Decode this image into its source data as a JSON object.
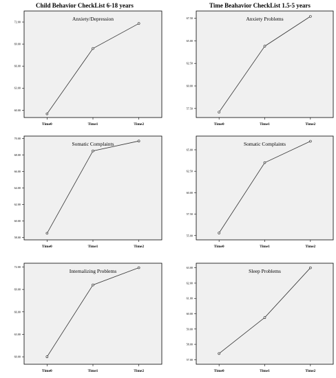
{
  "columns": [
    {
      "title": "Child Behavior CheckList 6-18 years"
    },
    {
      "title": "Time Beahavior CheckList 1.5-5 years"
    }
  ],
  "chart_data": [
    {
      "type": "line",
      "title": "Anxiety/Depression",
      "categories": [
        "Time0",
        "Time1",
        "Time2"
      ],
      "values": [
        59.5,
        68.4,
        71.8
      ],
      "yticks": [
        "60.00",
        "63.00",
        "66.00",
        "69.00",
        "72.00"
      ],
      "ylim": [
        59.0,
        73.5
      ],
      "grid": false
    },
    {
      "type": "line",
      "title": "Anxiety Problems",
      "categories": [
        "Time0",
        "Time1",
        "Time2"
      ],
      "values": [
        57.1,
        64.4,
        67.7
      ],
      "yticks": [
        "57.50",
        "60.00",
        "62.50",
        "65.00",
        "67.50"
      ],
      "ylim": [
        56.5,
        68.3
      ],
      "grid": false
    },
    {
      "type": "line",
      "title": "Somatic Complaints",
      "categories": [
        "Time0",
        "Time1",
        "Time2"
      ],
      "values": [
        58.5,
        68.5,
        69.7
      ],
      "yticks": [
        "58.00",
        "60.00",
        "62.00",
        "64.00",
        "66.00",
        "68.00",
        "70.00"
      ],
      "ylim": [
        57.7,
        70.3
      ],
      "grid": false
    },
    {
      "type": "line",
      "title": "Somatic Complaints",
      "categories": [
        "Time0",
        "Time1",
        "Time2"
      ],
      "values": [
        55.3,
        63.5,
        66.0
      ],
      "yticks": [
        "55.00",
        "57.50",
        "60.00",
        "62.50",
        "65.00"
      ],
      "ylim": [
        54.5,
        66.6
      ],
      "grid": false
    },
    {
      "type": "line",
      "title": "Internalizing Problems",
      "categories": [
        "Time0",
        "Time1",
        "Time2"
      ],
      "values": [
        60.0,
        69.6,
        71.9
      ],
      "yticks": [
        "60.00",
        "63.00",
        "66.00",
        "69.00",
        "72.00"
      ],
      "ylim": [
        59.0,
        72.5
      ],
      "grid": false
    },
    {
      "type": "line",
      "title": "Sleep Problems",
      "categories": [
        "Time0",
        "Time1",
        "Time2"
      ],
      "values": [
        57.4,
        59.75,
        63.0
      ],
      "yticks": [
        "57.00",
        "58.00",
        "59.00",
        "60.00",
        "61.00",
        "62.00",
        "63.00"
      ],
      "ylim": [
        56.7,
        63.3
      ],
      "grid": false
    }
  ]
}
